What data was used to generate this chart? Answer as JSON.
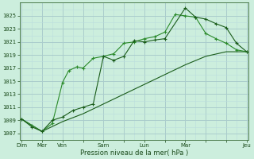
{
  "background_color": "#cceedd",
  "grid_color_major": "#aacccc",
  "grid_color_minor": "#bbdddd",
  "line_color_dark": "#1a5c1a",
  "line_color_mid": "#2a8a2a",
  "xlabel": "Pression niveau de la mer( hPa )",
  "ylim": [
    1006,
    1027
  ],
  "yticks": [
    1007,
    1009,
    1011,
    1013,
    1015,
    1017,
    1019,
    1021,
    1023,
    1025
  ],
  "xlim": [
    -0.1,
    11.1
  ],
  "xtick_labels": [
    "Dim",
    "Mer",
    "Ven",
    "",
    "Sam",
    "",
    "Lun",
    "",
    "Mar",
    "",
    "",
    "Jeu"
  ],
  "xtick_positions": [
    0,
    1,
    2,
    3,
    4,
    5,
    6,
    7,
    8,
    9,
    10,
    11
  ],
  "series1_x": [
    0,
    0.5,
    1,
    1.5,
    2,
    2.3,
    2.7,
    3,
    3.5,
    4,
    4.5,
    5,
    5.5,
    6,
    6.5,
    7,
    7.5,
    8,
    8.5,
    9,
    9.5,
    10,
    10.5,
    11
  ],
  "series1_y": [
    1009.2,
    1008.2,
    1007.3,
    1008.5,
    1014.8,
    1016.6,
    1017.2,
    1017.0,
    1018.5,
    1018.8,
    1019.2,
    1020.8,
    1021.0,
    1021.5,
    1021.8,
    1022.5,
    1025.2,
    1025.0,
    1024.8,
    1022.3,
    1021.5,
    1020.8,
    1019.8,
    1019.5
  ],
  "series2_x": [
    0,
    0.5,
    1,
    1.5,
    2,
    2.5,
    3,
    3.5,
    4,
    4.5,
    5,
    5.5,
    6,
    6.5,
    7,
    8,
    8.5,
    9,
    9.5,
    10,
    10.5,
    11
  ],
  "series2_y": [
    1009.2,
    1008.0,
    1007.3,
    1009.0,
    1009.5,
    1010.5,
    1011.0,
    1011.5,
    1018.8,
    1018.2,
    1018.8,
    1021.2,
    1021.0,
    1021.3,
    1021.5,
    1026.2,
    1024.8,
    1024.5,
    1023.8,
    1023.2,
    1020.8,
    1019.5
  ],
  "series3_x": [
    0,
    1,
    2,
    3,
    4,
    5,
    6,
    7,
    8,
    9,
    10,
    11
  ],
  "series3_y": [
    1009.2,
    1007.3,
    1008.8,
    1010.0,
    1011.5,
    1013.0,
    1014.5,
    1016.0,
    1017.5,
    1018.8,
    1019.5,
    1019.5
  ]
}
